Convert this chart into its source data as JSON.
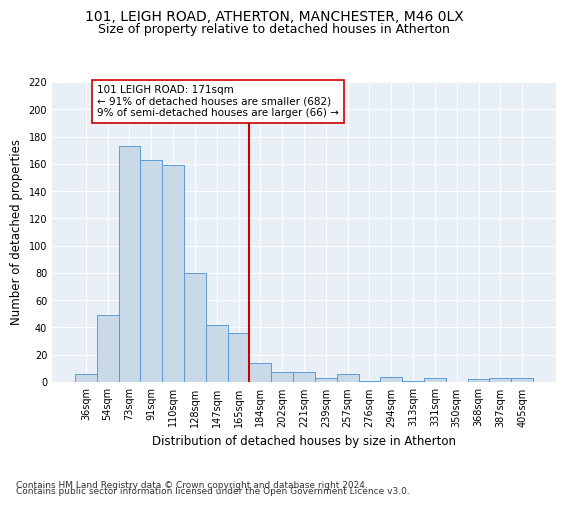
{
  "title1": "101, LEIGH ROAD, ATHERTON, MANCHESTER, M46 0LX",
  "title2": "Size of property relative to detached houses in Atherton",
  "xlabel": "Distribution of detached houses by size in Atherton",
  "ylabel": "Number of detached properties",
  "footer1": "Contains HM Land Registry data © Crown copyright and database right 2024.",
  "footer2": "Contains public sector information licensed under the Open Government Licence v3.0.",
  "categories": [
    "36sqm",
    "54sqm",
    "73sqm",
    "91sqm",
    "110sqm",
    "128sqm",
    "147sqm",
    "165sqm",
    "184sqm",
    "202sqm",
    "221sqm",
    "239sqm",
    "257sqm",
    "276sqm",
    "294sqm",
    "313sqm",
    "331sqm",
    "350sqm",
    "368sqm",
    "387sqm",
    "405sqm"
  ],
  "values": [
    6,
    49,
    173,
    163,
    159,
    80,
    42,
    36,
    14,
    7,
    7,
    3,
    6,
    1,
    4,
    1,
    3,
    0,
    2,
    3,
    3
  ],
  "bar_color": "#c9d9e8",
  "bar_edge_color": "#5b9bd5",
  "vline_color": "#cc0000",
  "vline_x": 7.5,
  "annotation_line1": "101 LEIGH ROAD: 171sqm",
  "annotation_line2": "← 91% of detached houses are smaller (682)",
  "annotation_line3": "9% of semi-detached houses are larger (66) →",
  "annotation_box_color": "#ffffff",
  "annotation_box_edge_color": "#cc0000",
  "ylim": [
    0,
    220
  ],
  "yticks": [
    0,
    20,
    40,
    60,
    80,
    100,
    120,
    140,
    160,
    180,
    200,
    220
  ],
  "background_color": "#e8eff6",
  "grid_color": "#ffffff",
  "title1_fontsize": 10,
  "title2_fontsize": 9,
  "xlabel_fontsize": 8.5,
  "ylabel_fontsize": 8.5,
  "tick_fontsize": 7,
  "annotation_fontsize": 7.5,
  "footer_fontsize": 6.5
}
